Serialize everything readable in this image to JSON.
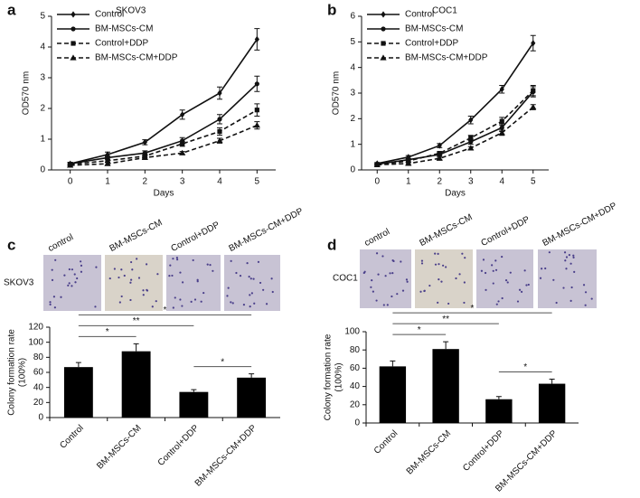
{
  "chart_data": [
    {
      "type": "line",
      "label": "a",
      "title": "SKOV3",
      "x_label": "Days",
      "y_label": "OD570  nm",
      "x": [
        0,
        1,
        2,
        3,
        4,
        5
      ],
      "xlim": [
        -0.5,
        5.5
      ],
      "xticks": [
        0,
        1,
        2,
        3,
        4,
        5
      ],
      "ylim": [
        0,
        5
      ],
      "yticks": [
        0,
        1,
        2,
        3,
        4,
        5
      ],
      "legend": "upper left",
      "series": [
        {
          "name": "Control",
          "color": "#111111",
          "line_style": "solid",
          "marker": "diamond",
          "values": [
            0.2,
            0.5,
            0.9,
            1.8,
            2.5,
            4.25
          ],
          "errors": [
            0.05,
            0.08,
            0.08,
            0.15,
            0.2,
            0.35
          ]
        },
        {
          "name": "BM-MSCs-CM",
          "color": "#111111",
          "line_style": "solid",
          "marker": "circle",
          "values": [
            0.2,
            0.4,
            0.55,
            0.95,
            1.65,
            2.8
          ],
          "errors": [
            0.04,
            0.05,
            0.07,
            0.1,
            0.15,
            0.25
          ]
        },
        {
          "name": "Control+DDP",
          "color": "#111111",
          "line_style": "dashed",
          "marker": "square",
          "values": [
            0.18,
            0.3,
            0.45,
            0.85,
            1.25,
            1.95
          ],
          "errors": [
            0.03,
            0.05,
            0.06,
            0.08,
            0.12,
            0.2
          ]
        },
        {
          "name": "BM-MSCs-CM+DDP",
          "color": "#111111",
          "line_style": "dashed",
          "marker": "triangle",
          "values": [
            0.15,
            0.2,
            0.4,
            0.55,
            0.95,
            1.45
          ],
          "errors": [
            0.03,
            0.04,
            0.05,
            0.05,
            0.08,
            0.12
          ]
        }
      ]
    },
    {
      "type": "line",
      "label": "b",
      "title": "COC1",
      "x_label": "Days",
      "y_label": "OD570  nm",
      "x": [
        0,
        1,
        2,
        3,
        4,
        5
      ],
      "xlim": [
        -0.5,
        5.5
      ],
      "xticks": [
        0,
        1,
        2,
        3,
        4,
        5
      ],
      "ylim": [
        0,
        6
      ],
      "yticks": [
        0,
        1,
        2,
        3,
        4,
        5,
        6
      ],
      "legend": "upper left",
      "series": [
        {
          "name": "Control",
          "color": "#111111",
          "line_style": "solid",
          "marker": "diamond",
          "values": [
            0.25,
            0.5,
            0.95,
            1.95,
            3.15,
            4.95
          ],
          "errors": [
            0.04,
            0.06,
            0.08,
            0.15,
            0.15,
            0.3
          ]
        },
        {
          "name": "BM-MSCs-CM",
          "color": "#111111",
          "line_style": "solid",
          "marker": "circle",
          "values": [
            0.22,
            0.4,
            0.6,
            1.1,
            1.65,
            3.05
          ],
          "errors": [
            0.04,
            0.05,
            0.06,
            0.1,
            0.15,
            0.2
          ]
        },
        {
          "name": "Control+DDP",
          "color": "#111111",
          "line_style": "dashed",
          "marker": "square",
          "values": [
            0.2,
            0.35,
            0.65,
            1.25,
            1.9,
            3.1
          ],
          "errors": [
            0.03,
            0.05,
            0.06,
            0.1,
            0.15,
            0.2
          ]
        },
        {
          "name": "BM-MSCs-CM+DDP",
          "color": "#111111",
          "line_style": "dashed",
          "marker": "triangle",
          "values": [
            0.2,
            0.25,
            0.45,
            0.85,
            1.45,
            2.45
          ],
          "errors": [
            0.03,
            0.04,
            0.05,
            0.06,
            0.1,
            0.1
          ]
        }
      ]
    },
    {
      "type": "bar",
      "label": "c",
      "row_label": "SKOV3",
      "image_labels": [
        "control",
        "BM-MSCs-CM",
        "Control+DDP",
        "BM-MSCs-CM+DDP"
      ],
      "y_label": [
        "Colony formation rate",
        "(100%)"
      ],
      "categories": [
        "Control",
        "BM-MSCs-CM",
        "Control+DDP",
        "BM-MSCs-CM+DDP"
      ],
      "values": [
        67,
        88,
        34,
        53
      ],
      "errors": [
        6,
        10,
        3,
        5
      ],
      "color": "#000000",
      "ylim": [
        0,
        120
      ],
      "yticks": [
        0,
        20,
        40,
        60,
        80,
        100,
        120
      ],
      "brackets": [
        {
          "between": [
            0,
            1
          ],
          "label": "*"
        },
        {
          "between": [
            2,
            3
          ],
          "label": "*"
        },
        {
          "between": [
            0,
            2
          ],
          "label": "**"
        },
        {
          "between": [
            0,
            3
          ],
          "label": "*"
        }
      ]
    },
    {
      "type": "bar",
      "label": "d",
      "row_label": "COC1",
      "image_labels": [
        "control",
        "BM-MSCs-CM",
        "Control+DDP",
        "BM-MSCs-CM+DDP"
      ],
      "y_label": [
        "Colony formation rate",
        "(100%)"
      ],
      "categories": [
        "Control",
        "BM-MSCs-CM",
        "Control+DDP",
        "BM-MSCs-CM+DDP"
      ],
      "values": [
        62,
        81,
        26,
        43
      ],
      "errors": [
        6,
        8,
        3,
        5
      ],
      "color": "#000000",
      "ylim": [
        0,
        100
      ],
      "yticks": [
        0,
        20,
        40,
        60,
        80,
        100
      ],
      "brackets": [
        {
          "between": [
            0,
            1
          ],
          "label": "*"
        },
        {
          "between": [
            2,
            3
          ],
          "label": "*"
        },
        {
          "between": [
            0,
            2
          ],
          "label": "**"
        },
        {
          "between": [
            0,
            3
          ],
          "label": "*"
        }
      ]
    }
  ]
}
